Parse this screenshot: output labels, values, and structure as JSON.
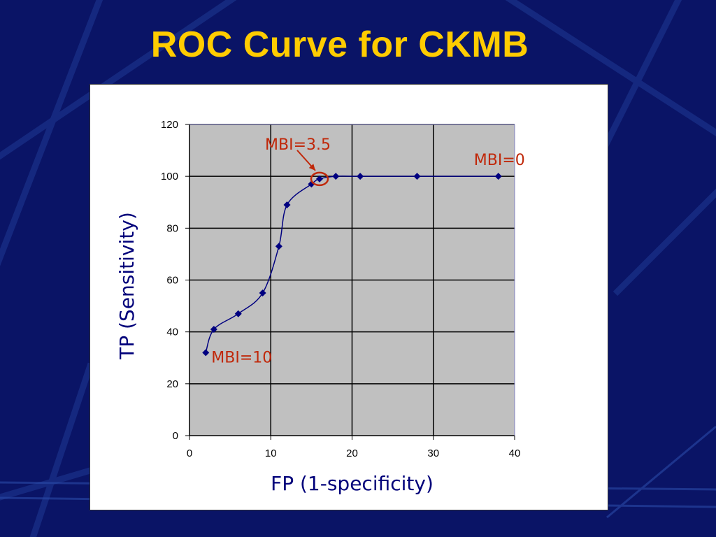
{
  "slide": {
    "title": "ROC Curve for CKMB",
    "background_color": "#0a1466",
    "title_color": "#ffcc00"
  },
  "chart_data": {
    "type": "line",
    "title": "",
    "xlabel": "FP (1-specificity)",
    "ylabel": "TP (Sensitivity)",
    "xlim": [
      0,
      40
    ],
    "ylim": [
      0,
      120
    ],
    "xticks": [
      0,
      10,
      20,
      30,
      40
    ],
    "yticks": [
      0,
      20,
      40,
      60,
      80,
      100,
      120
    ],
    "grid": true,
    "legend": "none",
    "plot_background": "#c0c0c0",
    "line_color": "#000080",
    "annotation_color": "#c0280a",
    "series": [
      {
        "x": [
          2,
          3,
          6,
          9,
          11,
          12,
          15,
          16,
          18,
          21,
          28,
          38
        ],
        "y": [
          32,
          41,
          47,
          55,
          73,
          89,
          97,
          99,
          100,
          100,
          100,
          100
        ]
      }
    ],
    "annotations": [
      {
        "text": "MBI=10",
        "x": 2,
        "y": 32
      },
      {
        "text": "MBI=3.5",
        "x": 16,
        "y": 99,
        "highlight": "circle",
        "arrow": true
      },
      {
        "text": "MBI=0",
        "x": 38,
        "y": 100
      }
    ]
  }
}
